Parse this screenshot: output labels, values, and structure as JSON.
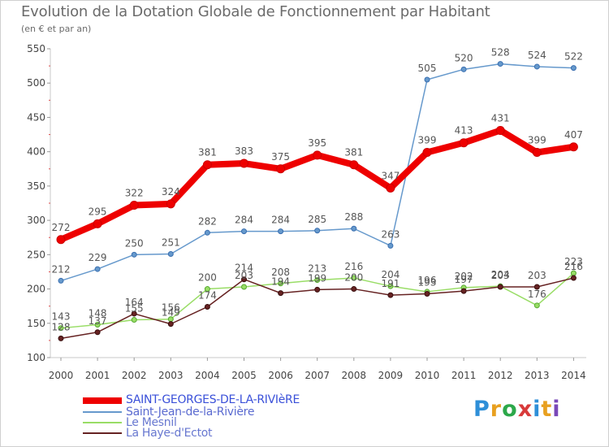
{
  "header": {
    "title": "Evolution de la Dotation Globale de Fonctionnement par Habitant",
    "subtitle": "(en € et par an)"
  },
  "logo": {
    "text": "Proxiti"
  },
  "colors": {
    "axis": "#c8c8c8",
    "grid_minor": "#e05050",
    "tick_text": "#444444",
    "label_text": "#555555"
  },
  "chart_data": {
    "type": "line",
    "title": "Evolution de la Dotation Globale de Fonctionnement par Habitant",
    "subtitle": "(en € et par an)",
    "xlabel": "",
    "ylabel": "",
    "ylim": [
      100,
      550
    ],
    "yticks": [
      100,
      150,
      200,
      250,
      300,
      350,
      400,
      450,
      500,
      550
    ],
    "grid": true,
    "legend_position": "bottom-left",
    "x": [
      "2000",
      "2001",
      "2002",
      "2003",
      "2004",
      "2005",
      "2006",
      "2007",
      "2008",
      "2009",
      "2010",
      "2011",
      "2012",
      "2013",
      "2014"
    ],
    "series": [
      {
        "name": "SAINT-GEORGES-DE-LA-RIVIèRE",
        "color": "#ee0000",
        "legend_color": "#3a50d9",
        "values": [
          272,
          295,
          322,
          324,
          381,
          383,
          375,
          395,
          381,
          347,
          399,
          413,
          431,
          399,
          407
        ]
      },
      {
        "name": "Saint-Jean-de-la-Rivière",
        "color": "#6699cc",
        "legend_color": "#5a6ad0",
        "values": [
          212,
          229,
          250,
          251,
          282,
          284,
          284,
          285,
          288,
          263,
          505,
          520,
          528,
          524,
          522
        ]
      },
      {
        "name": "Le Mesnil",
        "color": "#99dd66",
        "legend_color": "#6878d0",
        "values": [
          143,
          148,
          155,
          156,
          200,
          203,
          208,
          213,
          216,
          204,
          196,
          202,
          204,
          176,
          223
        ]
      },
      {
        "name": "La Haye-d'Ectot",
        "color": "#662222",
        "legend_color": "#6878d0",
        "values": [
          128,
          137,
          164,
          149,
          174,
          214,
          194,
          199,
          200,
          191,
          193,
          197,
          203,
          203,
          216
        ]
      }
    ]
  }
}
